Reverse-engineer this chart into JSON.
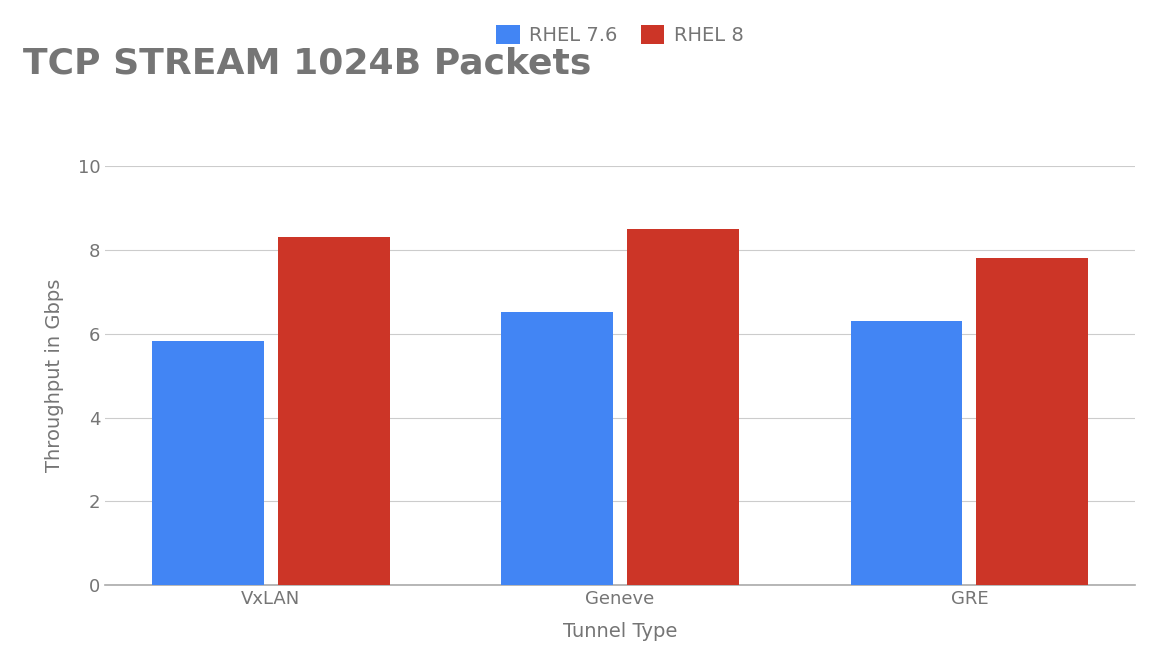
{
  "title": "TCP STREAM 1024B Packets",
  "xlabel": "Tunnel Type",
  "ylabel": "Throughput in Gbps",
  "categories": [
    "VxLAN",
    "Geneve",
    "GRE"
  ],
  "series": [
    {
      "label": "RHEL 7.6",
      "color": "#4285F4",
      "values": [
        5.82,
        6.52,
        6.3
      ]
    },
    {
      "label": "RHEL 8",
      "color": "#CC3527",
      "values": [
        8.32,
        8.5,
        7.82
      ]
    }
  ],
  "ylim": [
    0,
    10
  ],
  "yticks": [
    0,
    2,
    4,
    6,
    8,
    10
  ],
  "background_color": "#ffffff",
  "grid_color": "#cccccc",
  "text_color": "#757575",
  "title_fontsize": 26,
  "label_fontsize": 14,
  "tick_fontsize": 13,
  "legend_fontsize": 14,
  "bar_width": 0.32,
  "bar_gap": 0.04
}
